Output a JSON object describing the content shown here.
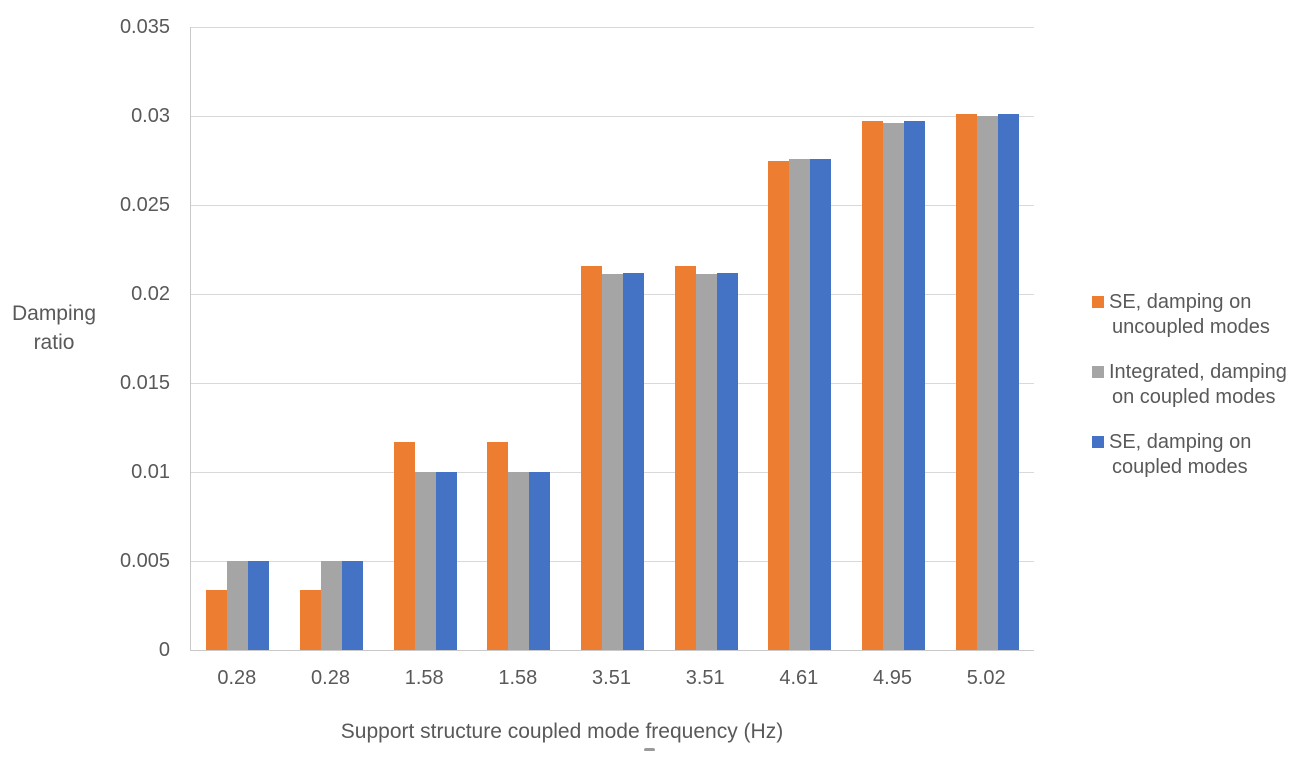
{
  "chart_data": {
    "type": "bar",
    "title": "",
    "categories": [
      "0.28",
      "0.28",
      "1.58",
      "1.58",
      "3.51",
      "3.51",
      "4.61",
      "4.95",
      "5.02"
    ],
    "series": [
      {
        "name": "SE, damping on uncoupled modes",
        "color": "#ED7D31",
        "values": [
          0.0034,
          0.0034,
          0.0117,
          0.0117,
          0.0216,
          0.0216,
          0.0275,
          0.0297,
          0.0301
        ]
      },
      {
        "name": "Integrated, damping on coupled modes",
        "color": "#A5A5A5",
        "values": [
          0.005,
          0.005,
          0.01,
          0.01,
          0.0211,
          0.0211,
          0.0276,
          0.0296,
          0.03
        ]
      },
      {
        "name": "SE, damping on coupled modes",
        "color": "#4472C4",
        "values": [
          0.005,
          0.005,
          0.01,
          0.01,
          0.0212,
          0.0212,
          0.0276,
          0.0297,
          0.0301
        ]
      }
    ],
    "xlabel": "Support structure coupled mode frequency (Hz)",
    "ylabel": "Damping ratio",
    "ylim": [
      0,
      0.035
    ],
    "ytick_step": 0.005,
    "yticks": [
      "0.035",
      "0.03",
      "0.025",
      "0.02",
      "0.015",
      "0.01",
      "0.005",
      "0"
    ],
    "grid": true,
    "legend_position": "right",
    "colors": {
      "grid": "#D9D9D9",
      "axis_line": "#C9C9C9",
      "text": "#595959"
    }
  },
  "legend": {
    "items": [
      {
        "line1": "SE, damping on",
        "line2": "uncoupled modes",
        "color": "#ED7D31"
      },
      {
        "line1": "Integrated, damping",
        "line2": "on coupled modes",
        "color": "#A5A5A5"
      },
      {
        "line1": "SE, damping on",
        "line2": "coupled modes",
        "color": "#4472C4"
      }
    ]
  }
}
